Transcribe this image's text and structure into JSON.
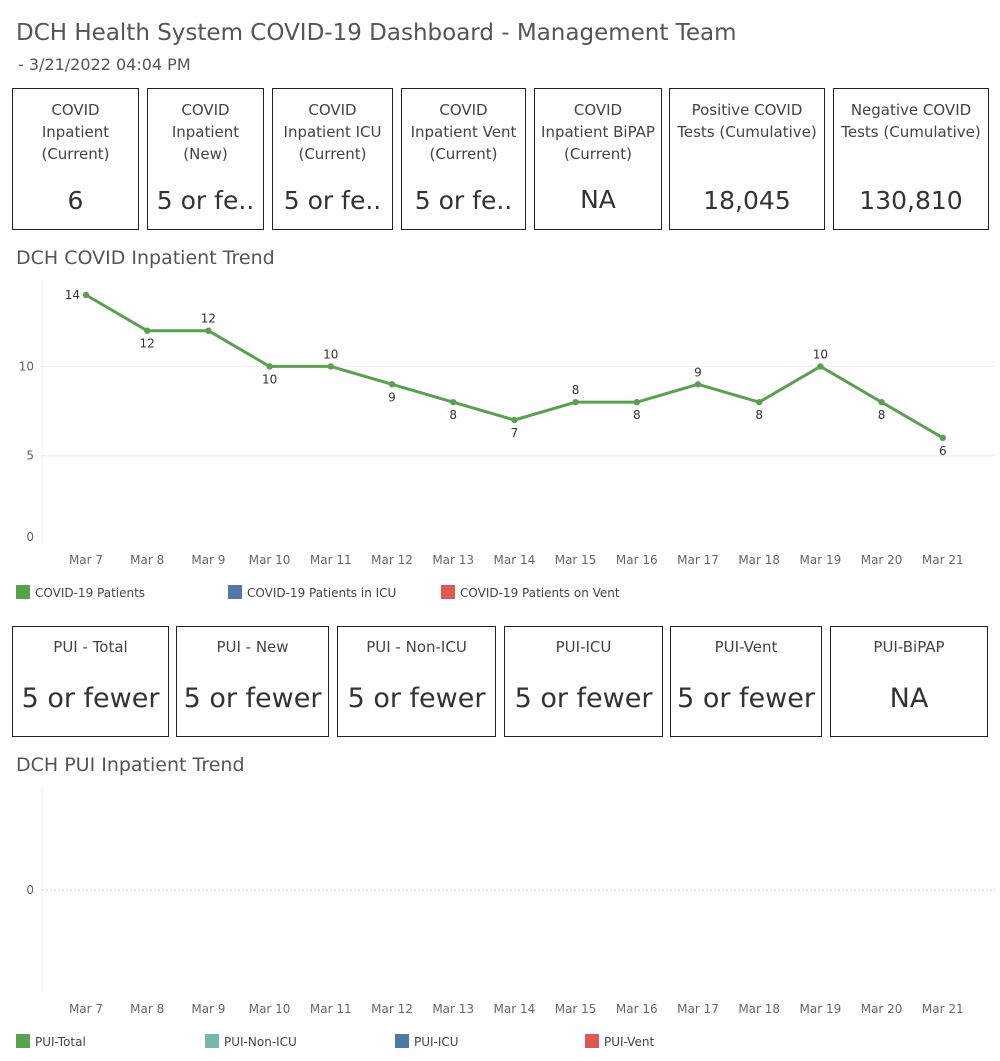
{
  "header": {
    "title": "DCH Health System COVID-19 Dashboard - Management Team",
    "subtitle": "- 3/21/2022 04:04 PM"
  },
  "covid_cards": [
    {
      "label": "COVID Inpatient (Current)",
      "value": "6"
    },
    {
      "label": "COVID Inpatient (New)",
      "value": "5 or fe.."
    },
    {
      "label": "COVID Inpatient ICU (Current)",
      "value": "5 or fe.."
    },
    {
      "label": "COVID Inpatient Vent (Current)",
      "value": "5 or fe.."
    },
    {
      "label": "COVID Inpatient BiPAP (Current)",
      "value": "NA"
    },
    {
      "label": "Positive COVID Tests (Cumulative)",
      "value": "18,045"
    },
    {
      "label": "Negative COVID Tests (Cumulative)",
      "value": "130,810"
    }
  ],
  "covid_trend": {
    "title": "DCH COVID Inpatient Trend",
    "legend": [
      {
        "label": "COVID-19 Patients",
        "color": "#59A14F"
      },
      {
        "label": "COVID-19 Patients in ICU",
        "color": "#4E79A7"
      },
      {
        "label": "COVID-19 Patients on Vent",
        "color": "#E15759"
      }
    ]
  },
  "pui_cards": [
    {
      "label": "PUI - Total",
      "value": "5 or fewer"
    },
    {
      "label": "PUI - New",
      "value": "5 or fewer"
    },
    {
      "label": "PUI - Non-ICU",
      "value": "5 or fewer"
    },
    {
      "label": "PUI-ICU",
      "value": "5 or fewer"
    },
    {
      "label": "PUI-Vent",
      "value": "5 or fewer"
    },
    {
      "label": "PUI-BiPAP",
      "value": "NA"
    }
  ],
  "pui_trend": {
    "title": "DCH PUI Inpatient Trend",
    "legend": [
      {
        "label": "PUI-Total",
        "color": "#59A14F"
      },
      {
        "label": "PUI-Non-ICU",
        "color": "#76B7B2"
      },
      {
        "label": "PUI-ICU",
        "color": "#4E79A7"
      },
      {
        "label": "PUI-Vent",
        "color": "#E15759"
      }
    ]
  },
  "chart_data": [
    {
      "type": "line",
      "title": "DCH COVID Inpatient Trend",
      "x": [
        "Mar 7",
        "Mar 8",
        "Mar 9",
        "Mar 10",
        "Mar 11",
        "Mar 12",
        "Mar 13",
        "Mar 14",
        "Mar 15",
        "Mar 16",
        "Mar 17",
        "Mar 18",
        "Mar 19",
        "Mar 20",
        "Mar 21"
      ],
      "series": [
        {
          "name": "COVID-19 Patients",
          "color": "#59A14F",
          "values": [
            14,
            12,
            12,
            10,
            10,
            9,
            8,
            7,
            8,
            8,
            9,
            8,
            10,
            8,
            6
          ]
        }
      ],
      "yticks": [
        0,
        5,
        10
      ],
      "ylim": [
        0,
        14.5
      ],
      "grid": true,
      "legend": "bottom"
    },
    {
      "type": "line",
      "title": "DCH PUI Inpatient Trend",
      "x": [
        "Mar 7",
        "Mar 8",
        "Mar 9",
        "Mar 10",
        "Mar 11",
        "Mar 12",
        "Mar 13",
        "Mar 14",
        "Mar 15",
        "Mar 16",
        "Mar 17",
        "Mar 18",
        "Mar 19",
        "Mar 20",
        "Mar 21"
      ],
      "series": [],
      "yticks": [
        0
      ],
      "grid": true,
      "legend": "bottom"
    }
  ]
}
